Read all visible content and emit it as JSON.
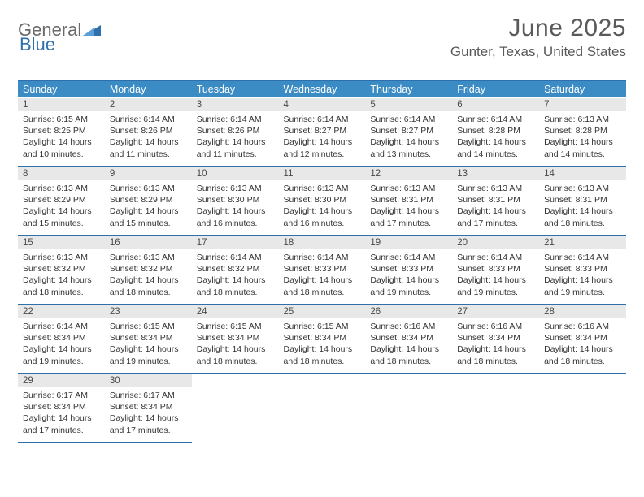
{
  "brand": {
    "part1": "General",
    "part2": "Blue"
  },
  "title": "June 2025",
  "location": "Gunter, Texas, United States",
  "colors": {
    "header_bg": "#3b8bc4",
    "header_text": "#ffffff",
    "rule": "#2f6fab",
    "daynum_bg": "#e8e8e8",
    "text": "#333333",
    "muted": "#5a5a5a",
    "page_bg": "#ffffff"
  },
  "typography": {
    "title_fontsize_pt": 22,
    "location_fontsize_pt": 13,
    "dow_fontsize_pt": 9.5,
    "cell_fontsize_pt": 8
  },
  "days_of_week": [
    "Sunday",
    "Monday",
    "Tuesday",
    "Wednesday",
    "Thursday",
    "Friday",
    "Saturday"
  ],
  "weeks": [
    [
      {
        "n": "1",
        "sr": "Sunrise: 6:15 AM",
        "ss": "Sunset: 8:25 PM",
        "d1": "Daylight: 14 hours",
        "d2": "and 10 minutes."
      },
      {
        "n": "2",
        "sr": "Sunrise: 6:14 AM",
        "ss": "Sunset: 8:26 PM",
        "d1": "Daylight: 14 hours",
        "d2": "and 11 minutes."
      },
      {
        "n": "3",
        "sr": "Sunrise: 6:14 AM",
        "ss": "Sunset: 8:26 PM",
        "d1": "Daylight: 14 hours",
        "d2": "and 11 minutes."
      },
      {
        "n": "4",
        "sr": "Sunrise: 6:14 AM",
        "ss": "Sunset: 8:27 PM",
        "d1": "Daylight: 14 hours",
        "d2": "and 12 minutes."
      },
      {
        "n": "5",
        "sr": "Sunrise: 6:14 AM",
        "ss": "Sunset: 8:27 PM",
        "d1": "Daylight: 14 hours",
        "d2": "and 13 minutes."
      },
      {
        "n": "6",
        "sr": "Sunrise: 6:14 AM",
        "ss": "Sunset: 8:28 PM",
        "d1": "Daylight: 14 hours",
        "d2": "and 14 minutes."
      },
      {
        "n": "7",
        "sr": "Sunrise: 6:13 AM",
        "ss": "Sunset: 8:28 PM",
        "d1": "Daylight: 14 hours",
        "d2": "and 14 minutes."
      }
    ],
    [
      {
        "n": "8",
        "sr": "Sunrise: 6:13 AM",
        "ss": "Sunset: 8:29 PM",
        "d1": "Daylight: 14 hours",
        "d2": "and 15 minutes."
      },
      {
        "n": "9",
        "sr": "Sunrise: 6:13 AM",
        "ss": "Sunset: 8:29 PM",
        "d1": "Daylight: 14 hours",
        "d2": "and 15 minutes."
      },
      {
        "n": "10",
        "sr": "Sunrise: 6:13 AM",
        "ss": "Sunset: 8:30 PM",
        "d1": "Daylight: 14 hours",
        "d2": "and 16 minutes."
      },
      {
        "n": "11",
        "sr": "Sunrise: 6:13 AM",
        "ss": "Sunset: 8:30 PM",
        "d1": "Daylight: 14 hours",
        "d2": "and 16 minutes."
      },
      {
        "n": "12",
        "sr": "Sunrise: 6:13 AM",
        "ss": "Sunset: 8:31 PM",
        "d1": "Daylight: 14 hours",
        "d2": "and 17 minutes."
      },
      {
        "n": "13",
        "sr": "Sunrise: 6:13 AM",
        "ss": "Sunset: 8:31 PM",
        "d1": "Daylight: 14 hours",
        "d2": "and 17 minutes."
      },
      {
        "n": "14",
        "sr": "Sunrise: 6:13 AM",
        "ss": "Sunset: 8:31 PM",
        "d1": "Daylight: 14 hours",
        "d2": "and 18 minutes."
      }
    ],
    [
      {
        "n": "15",
        "sr": "Sunrise: 6:13 AM",
        "ss": "Sunset: 8:32 PM",
        "d1": "Daylight: 14 hours",
        "d2": "and 18 minutes."
      },
      {
        "n": "16",
        "sr": "Sunrise: 6:13 AM",
        "ss": "Sunset: 8:32 PM",
        "d1": "Daylight: 14 hours",
        "d2": "and 18 minutes."
      },
      {
        "n": "17",
        "sr": "Sunrise: 6:14 AM",
        "ss": "Sunset: 8:32 PM",
        "d1": "Daylight: 14 hours",
        "d2": "and 18 minutes."
      },
      {
        "n": "18",
        "sr": "Sunrise: 6:14 AM",
        "ss": "Sunset: 8:33 PM",
        "d1": "Daylight: 14 hours",
        "d2": "and 18 minutes."
      },
      {
        "n": "19",
        "sr": "Sunrise: 6:14 AM",
        "ss": "Sunset: 8:33 PM",
        "d1": "Daylight: 14 hours",
        "d2": "and 19 minutes."
      },
      {
        "n": "20",
        "sr": "Sunrise: 6:14 AM",
        "ss": "Sunset: 8:33 PM",
        "d1": "Daylight: 14 hours",
        "d2": "and 19 minutes."
      },
      {
        "n": "21",
        "sr": "Sunrise: 6:14 AM",
        "ss": "Sunset: 8:33 PM",
        "d1": "Daylight: 14 hours",
        "d2": "and 19 minutes."
      }
    ],
    [
      {
        "n": "22",
        "sr": "Sunrise: 6:14 AM",
        "ss": "Sunset: 8:34 PM",
        "d1": "Daylight: 14 hours",
        "d2": "and 19 minutes."
      },
      {
        "n": "23",
        "sr": "Sunrise: 6:15 AM",
        "ss": "Sunset: 8:34 PM",
        "d1": "Daylight: 14 hours",
        "d2": "and 19 minutes."
      },
      {
        "n": "24",
        "sr": "Sunrise: 6:15 AM",
        "ss": "Sunset: 8:34 PM",
        "d1": "Daylight: 14 hours",
        "d2": "and 18 minutes."
      },
      {
        "n": "25",
        "sr": "Sunrise: 6:15 AM",
        "ss": "Sunset: 8:34 PM",
        "d1": "Daylight: 14 hours",
        "d2": "and 18 minutes."
      },
      {
        "n": "26",
        "sr": "Sunrise: 6:16 AM",
        "ss": "Sunset: 8:34 PM",
        "d1": "Daylight: 14 hours",
        "d2": "and 18 minutes."
      },
      {
        "n": "27",
        "sr": "Sunrise: 6:16 AM",
        "ss": "Sunset: 8:34 PM",
        "d1": "Daylight: 14 hours",
        "d2": "and 18 minutes."
      },
      {
        "n": "28",
        "sr": "Sunrise: 6:16 AM",
        "ss": "Sunset: 8:34 PM",
        "d1": "Daylight: 14 hours",
        "d2": "and 18 minutes."
      }
    ],
    [
      {
        "n": "29",
        "sr": "Sunrise: 6:17 AM",
        "ss": "Sunset: 8:34 PM",
        "d1": "Daylight: 14 hours",
        "d2": "and 17 minutes."
      },
      {
        "n": "30",
        "sr": "Sunrise: 6:17 AM",
        "ss": "Sunset: 8:34 PM",
        "d1": "Daylight: 14 hours",
        "d2": "and 17 minutes."
      },
      null,
      null,
      null,
      null,
      null
    ]
  ]
}
